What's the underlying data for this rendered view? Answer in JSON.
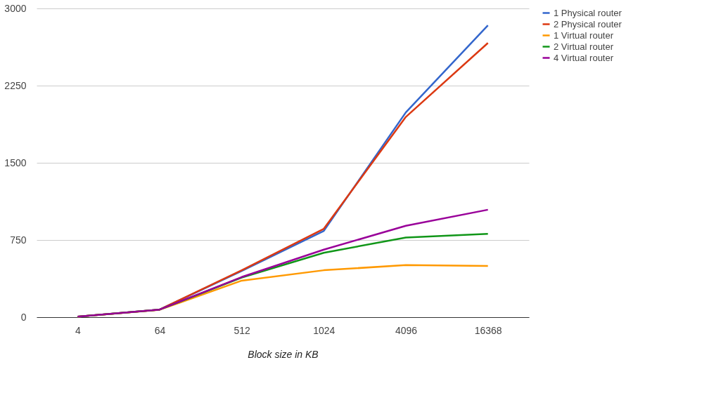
{
  "chart_data": {
    "type": "line",
    "xlabel": "Block size in KB",
    "categories": [
      "4",
      "64",
      "512",
      "1024",
      "4096",
      "16368"
    ],
    "ylim": [
      0,
      3000
    ],
    "yticks": [
      0,
      750,
      1500,
      2250,
      3000
    ],
    "grid": "y",
    "legend": "right",
    "marker": "none",
    "line_style": "solid",
    "series": [
      {
        "name": "1 Physical router",
        "color": "#3366cc",
        "values": [
          5,
          74,
          450,
          838,
          1990,
          2835
        ]
      },
      {
        "name": "2 Physical router",
        "color": "#dc3912",
        "values": [
          5,
          74,
          456,
          859,
          1946,
          2664
        ]
      },
      {
        "name": "1 Virtual router",
        "color": "#ff9900",
        "values": [
          5,
          72,
          355,
          456,
          506,
          497
        ]
      },
      {
        "name": "2 Virtual router",
        "color": "#109618",
        "values": [
          5,
          74,
          385,
          626,
          774,
          809
        ]
      },
      {
        "name": "4 Virtual router",
        "color": "#990099",
        "values": [
          5,
          74,
          390,
          656,
          888,
          1044
        ]
      }
    ]
  }
}
